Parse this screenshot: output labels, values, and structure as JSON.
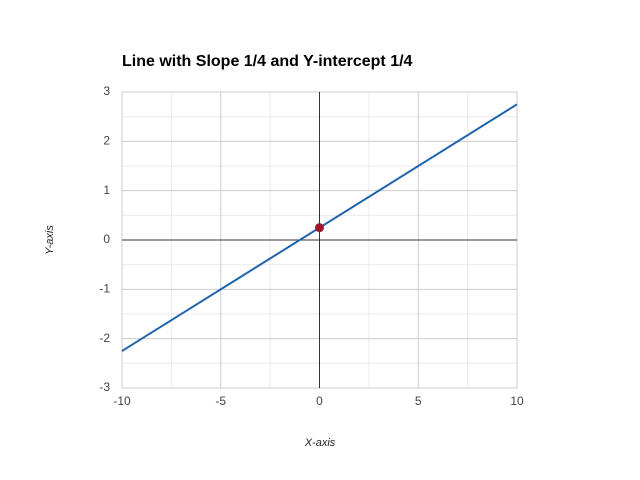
{
  "chart_data": {
    "type": "line",
    "title": "Line with Slope 1/4 and Y-intercept 1/4",
    "x_label": "X-axis",
    "y_label": "Y-axis",
    "x": [
      -10,
      10
    ],
    "values": [
      -2.25,
      2.75
    ],
    "color": "#1f64ad",
    "points": [
      {
        "x": 0,
        "y": 0.25,
        "color": "#a3162e"
      }
    ],
    "xlim": [
      -10,
      10
    ],
    "ylim": [
      -3,
      3
    ],
    "xticks": [
      -10,
      -5,
      0,
      5,
      10
    ],
    "yticks": [
      -3,
      -2,
      -1,
      0,
      1,
      2,
      3
    ],
    "grid": true,
    "minor_grid": true
  }
}
